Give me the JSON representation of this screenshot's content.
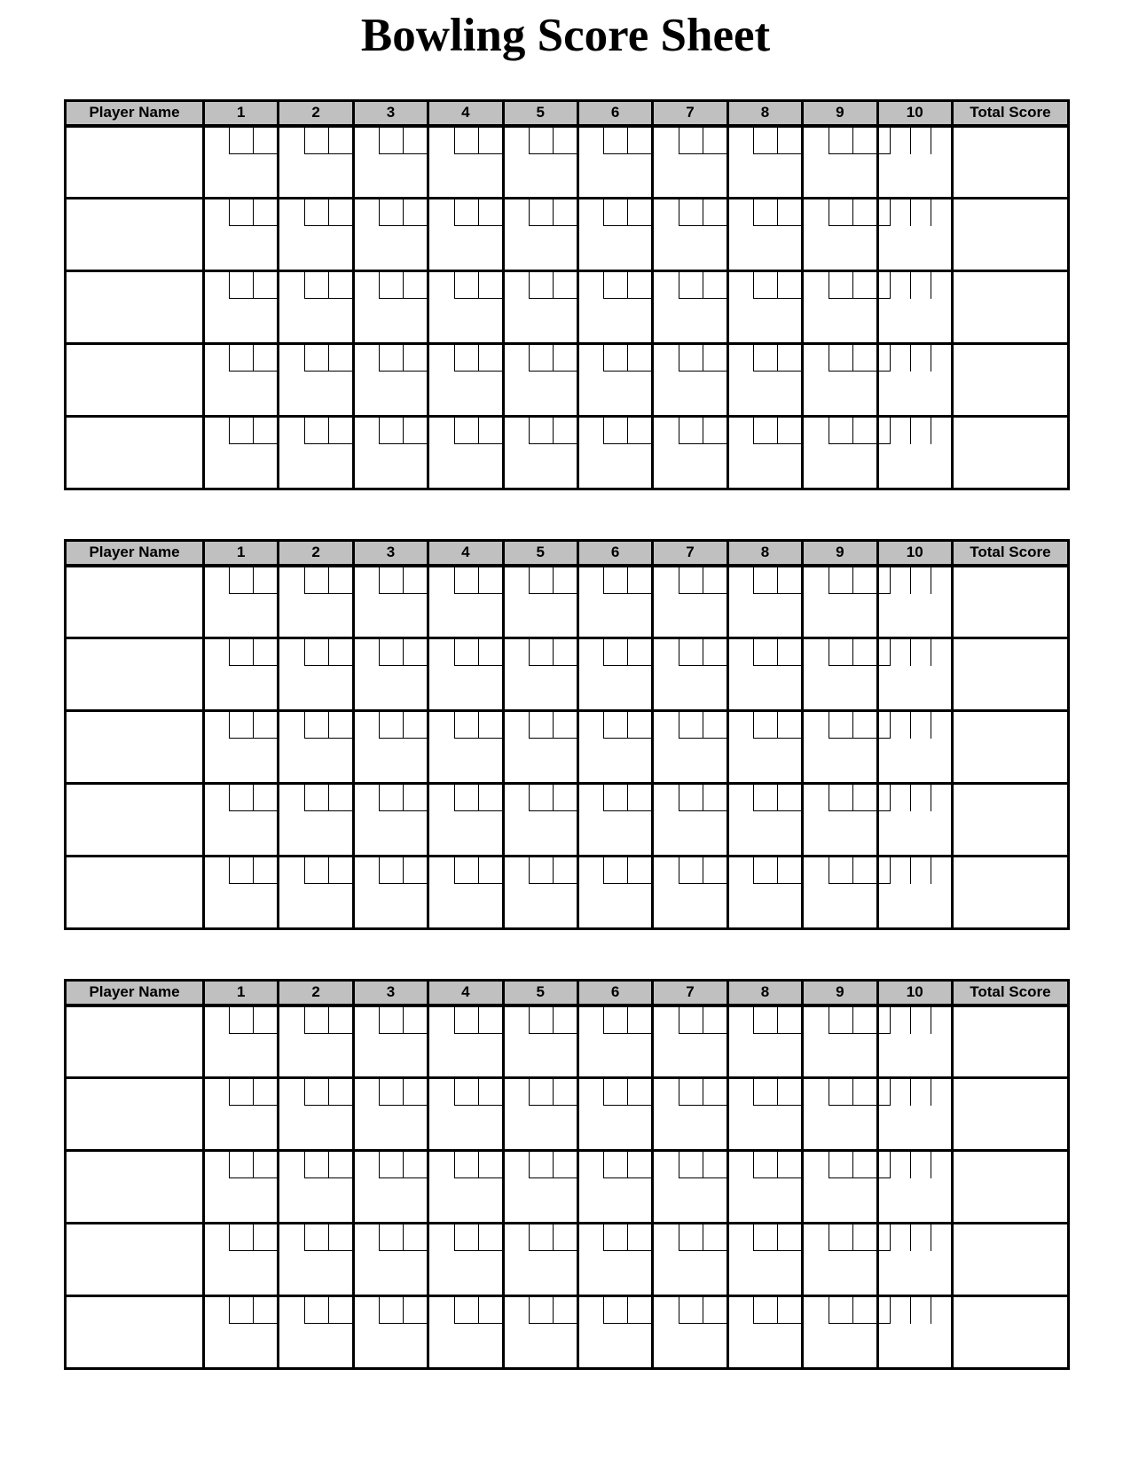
{
  "page": {
    "title": "Bowling Score Sheet"
  },
  "colors": {
    "header_bg": "#c0c0c0",
    "line": "#000000",
    "page_bg": "#ffffff"
  },
  "sheet": {
    "table_count": 3,
    "rows_per_table": 5,
    "header": {
      "player_name": "Player Name",
      "frames": [
        "1",
        "2",
        "3",
        "4",
        "5",
        "6",
        "7",
        "8",
        "9",
        "10"
      ],
      "total_score": "Total Score"
    },
    "frames_throw_boxes": [
      2,
      2,
      2,
      2,
      2,
      2,
      2,
      2,
      2,
      3
    ],
    "row_values": {
      "player_name": "",
      "frames": [
        "",
        "",
        "",
        "",
        "",
        "",
        "",
        "",
        "",
        ""
      ],
      "total_score": ""
    }
  }
}
